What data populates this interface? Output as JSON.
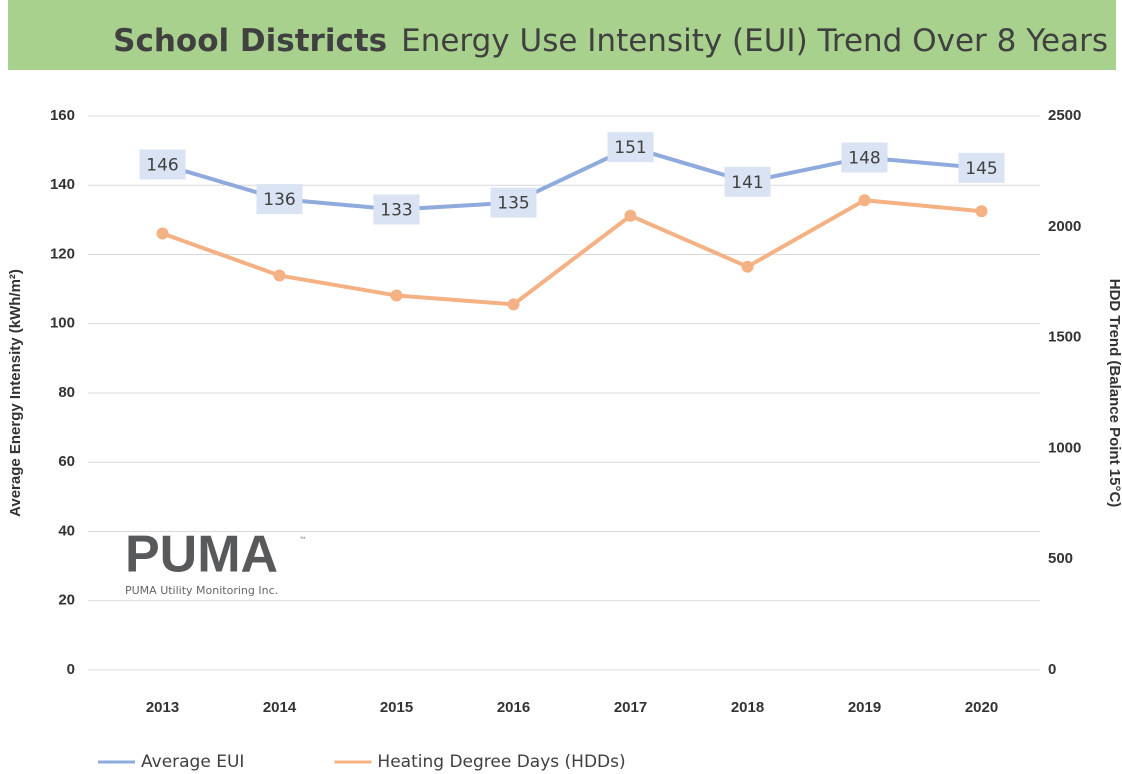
{
  "chart_data": {
    "type": "line",
    "title_bold": "School Districts",
    "title": "Energy Use Intensity (EUI) Trend Over 8 Years",
    "y_label": "Average Energy Intensity (kWh/m²)",
    "y2_label": "HDD Trend (Balance Point 15°C)",
    "categories": [
      "2013",
      "2014",
      "2015",
      "2016",
      "2017",
      "2018",
      "2019",
      "2020"
    ],
    "series": [
      {
        "name": "Average EUI",
        "color": "#8faadc",
        "values": [
          146,
          136,
          133,
          135,
          151,
          141,
          148,
          145
        ],
        "data_labels": true
      },
      {
        "name": "Heating Degree Days (HDDs)",
        "color": "#f4b183",
        "axis": "y2",
        "markers": true,
        "values": [
          1970,
          1780,
          1690,
          1650,
          2050,
          1820,
          2120,
          2070
        ]
      }
    ],
    "ylim": [
      0,
      160
    ],
    "yticks": [
      0,
      20,
      40,
      60,
      80,
      100,
      120,
      140,
      160
    ],
    "y2lim": [
      0,
      2500
    ],
    "y2ticks": [
      0,
      500,
      1000,
      1500,
      2000,
      2500
    ],
    "grid": true,
    "legend": "bottom",
    "logo": {
      "name": "PUMA",
      "mark": "™",
      "tagline": "PUMA Utility Monitoring Inc."
    }
  }
}
